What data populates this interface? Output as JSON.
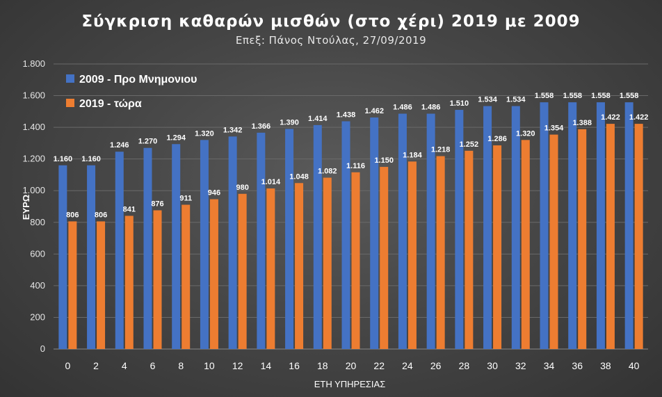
{
  "chart_data": {
    "type": "bar",
    "title": "Σύγκριση καθαρών μισθών (στο χέρι) 2019 με 2009",
    "subtitle": "Επεξ: Πάνος Ντούλας, 27/09/2019",
    "xlabel": "ΕΤΗ ΥΠΗΡΕΣΙΑΣ",
    "ylabel": "ΕΥΡΩ",
    "ylim": [
      0,
      1800
    ],
    "yticks": [
      0,
      200,
      400,
      600,
      800,
      1000,
      1200,
      1400,
      1600,
      1800
    ],
    "ytick_labels": [
      "0",
      "200",
      "400",
      "600",
      "800",
      "1.000",
      "1.200",
      "1.400",
      "1.600",
      "1.800"
    ],
    "grid": true,
    "legend_position": "top-left",
    "categories": [
      "0",
      "2",
      "4",
      "6",
      "8",
      "10",
      "12",
      "14",
      "16",
      "18",
      "20",
      "22",
      "24",
      "26",
      "28",
      "30",
      "32",
      "34",
      "36",
      "38",
      "40"
    ],
    "series": [
      {
        "name": "2009 - Προ Μνημονιου",
        "color": "#4472c4",
        "values": [
          1160,
          1160,
          1246,
          1270,
          1294,
          1320,
          1342,
          1366,
          1390,
          1414,
          1438,
          1462,
          1486,
          1486,
          1510,
          1534,
          1534,
          1558,
          1558,
          1558,
          1558
        ],
        "labels": [
          "1.160",
          "1.160",
          "1.246",
          "1.270",
          "1.294",
          "1.320",
          "1.342",
          "1.366",
          "1.390",
          "1.414",
          "1.438",
          "1.462",
          "1.486",
          "1.486",
          "1.510",
          "1.534",
          "1.534",
          "1.558",
          "1.558",
          "1.558",
          "1.558"
        ]
      },
      {
        "name": "2019 - τώρα",
        "color": "#ed7d31",
        "values": [
          806,
          806,
          841,
          876,
          911,
          946,
          980,
          1014,
          1048,
          1082,
          1116,
          1150,
          1184,
          1218,
          1252,
          1286,
          1320,
          1354,
          1388,
          1422,
          1422
        ],
        "labels": [
          "806",
          "806",
          "841",
          "876",
          "911",
          "946",
          "980",
          "1.014",
          "1.048",
          "1.082",
          "1.116",
          "1.150",
          "1.184",
          "1.218",
          "1.252",
          "1.286",
          "1.320",
          "1.354",
          "1.388",
          "1.422",
          "1.422"
        ]
      }
    ]
  }
}
